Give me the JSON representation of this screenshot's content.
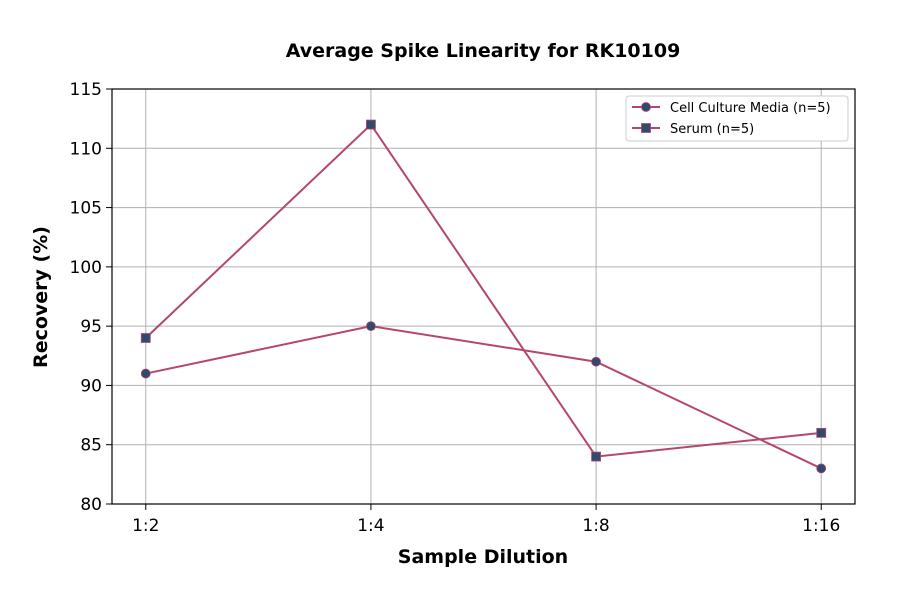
{
  "chart_data": {
    "type": "line",
    "title": "Average Spike Linearity for RK10109",
    "xlabel": "Sample Dilution",
    "ylabel": "Recovery (%)",
    "categories": [
      "1:2",
      "1:4",
      "1:8",
      "1:16"
    ],
    "ylim": [
      80,
      115
    ],
    "yticks": [
      80,
      85,
      90,
      95,
      100,
      105,
      110,
      115
    ],
    "grid": true,
    "legend": "top-right",
    "series": [
      {
        "name": "Cell Culture Media (n=5)",
        "values": [
          91,
          95,
          92,
          83
        ],
        "marker": "circle",
        "line_color": "#b5476f",
        "marker_color": "#2f4a6d"
      },
      {
        "name": "Serum (n=5)",
        "values": [
          94,
          112,
          84,
          86
        ],
        "marker": "square",
        "line_color": "#b5476f",
        "marker_color": "#2f4a6d"
      }
    ]
  }
}
